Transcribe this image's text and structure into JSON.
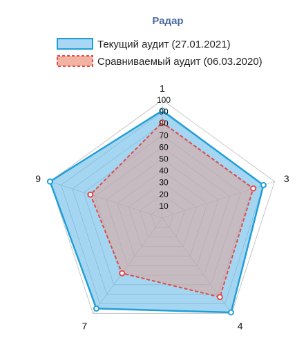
{
  "chart_data": {
    "type": "radar",
    "title": "Радар",
    "categories": [
      "1",
      "3",
      "4",
      "7",
      "9"
    ],
    "rmax": 100,
    "ticks": [
      "10",
      "20",
      "30",
      "40",
      "50",
      "60",
      "70",
      "80",
      "90",
      "100"
    ],
    "grid": true,
    "legend_position": "top",
    "series": [
      {
        "name": "Текущий аудит (27.01.2021)",
        "values": [
          91,
          90,
          99,
          95,
          100
        ],
        "line_color": "#1f9fd8",
        "fill_color": "#5ab4e6",
        "dashed": false
      },
      {
        "name": "Сравниваемый аудит (06.03.2020)",
        "values": [
          81,
          81,
          83,
          58,
          64
        ],
        "line_color": "#e34a4a",
        "fill_color": "#e8a090",
        "dashed": true
      }
    ]
  }
}
